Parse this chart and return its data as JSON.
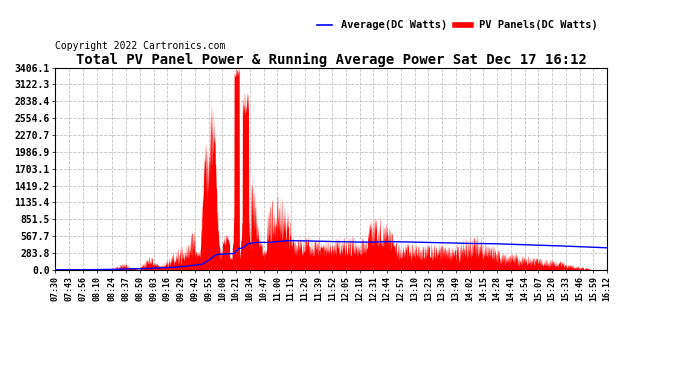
{
  "title": "Total PV Panel Power & Running Average Power Sat Dec 17 16:12",
  "copyright": "Copyright 2022 Cartronics.com",
  "legend_avg": "Average(DC Watts)",
  "legend_pv": "PV Panels(DC Watts)",
  "ylabel_values": [
    0.0,
    283.8,
    567.7,
    851.5,
    1135.4,
    1419.2,
    1703.1,
    1986.9,
    2270.7,
    2554.6,
    2838.4,
    3122.3,
    3406.1
  ],
  "ymax": 3406.1,
  "background_color": "#ffffff",
  "grid_color": "#bbbbbb",
  "pv_color": "#ff0000",
  "avg_color": "#0000ff",
  "title_color": "#000000",
  "copyright_color": "#000000",
  "tick_label_color": "#000000",
  "tick_labels": [
    "07:30",
    "07:43",
    "07:56",
    "08:10",
    "08:24",
    "08:37",
    "08:50",
    "09:03",
    "09:16",
    "09:29",
    "09:42",
    "09:55",
    "10:08",
    "10:21",
    "10:34",
    "10:47",
    "11:00",
    "11:13",
    "11:26",
    "11:39",
    "11:52",
    "12:05",
    "12:18",
    "12:31",
    "12:44",
    "12:57",
    "13:10",
    "13:23",
    "13:36",
    "13:49",
    "14:02",
    "14:15",
    "14:28",
    "14:41",
    "14:54",
    "15:07",
    "15:20",
    "15:33",
    "15:46",
    "15:59",
    "16:12"
  ]
}
